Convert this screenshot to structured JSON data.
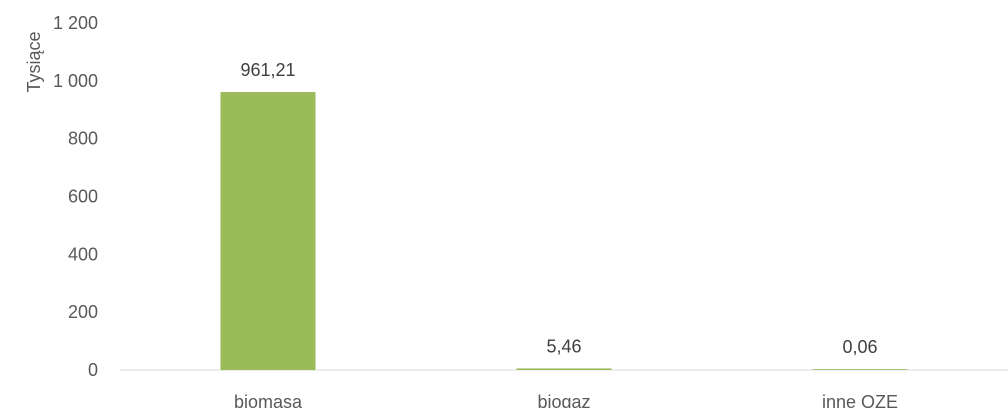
{
  "chart_data": {
    "type": "bar",
    "ylabel": "Tysiące",
    "categories": [
      "biomasa",
      "biogaz",
      "inne OZE"
    ],
    "values": [
      961.21,
      5.46,
      0.06
    ],
    "data_labels": [
      "961,21",
      "5,46",
      "0,06"
    ],
    "ylim": [
      0,
      1200
    ],
    "yticks": [
      0,
      200,
      400,
      600,
      800,
      1000,
      1200
    ],
    "ytick_labels": [
      "0",
      "200",
      "400",
      "600",
      "800",
      "1 000",
      "1 200"
    ],
    "bar_color": "#9BBB59",
    "grid": false,
    "legend": "none"
  }
}
